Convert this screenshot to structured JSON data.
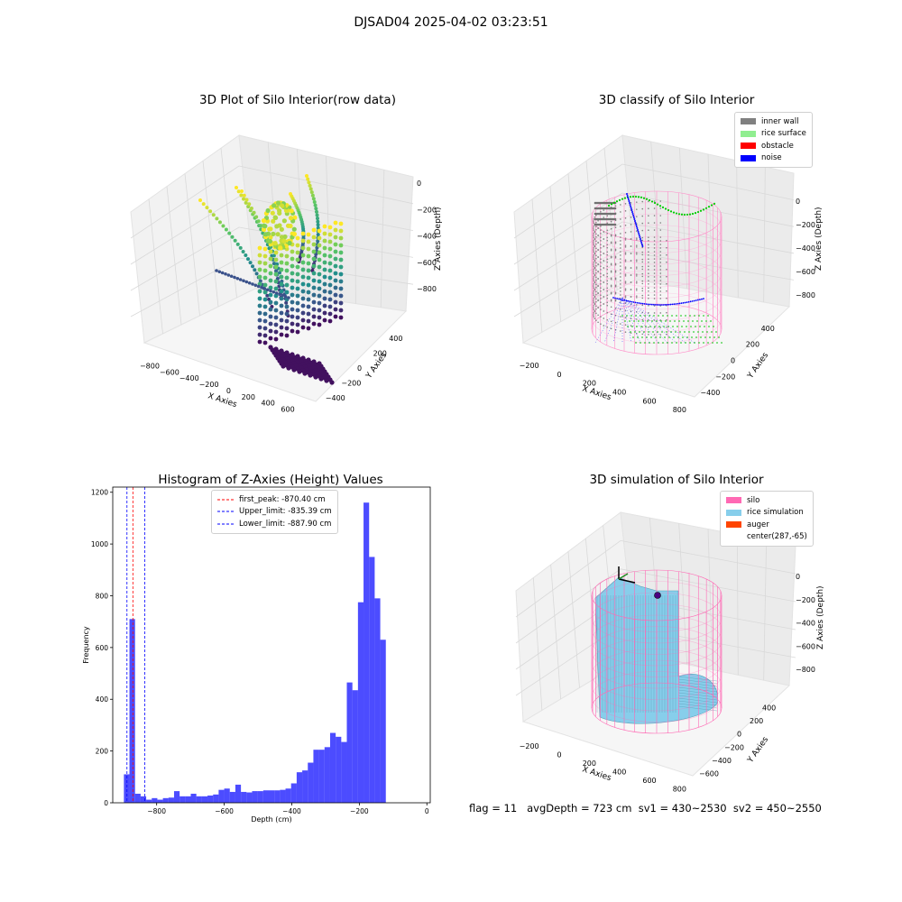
{
  "suptitle": "DJSAD04 2025-04-02 03:23:51",
  "panels": {
    "raw": {
      "title": "3D Plot of Silo Interior(row data)",
      "xlabel": "X Axies",
      "ylabel": "Y Axies",
      "zlabel": "Z Axies (Depth)",
      "xticks": [
        "−800",
        "−600",
        "−400",
        "−200",
        "0",
        "200",
        "400",
        "600"
      ],
      "yticks": [
        "−400",
        "−200",
        "0",
        "200",
        "400"
      ],
      "zticks": [
        "0",
        "−200",
        "−400",
        "−600",
        "−800"
      ]
    },
    "classify": {
      "title": "3D classify of Silo Interior",
      "xlabel": "X Axies",
      "ylabel": "Y Axies",
      "zlabel": "Z Axies (Depth)",
      "xticks": [
        "−200",
        "0",
        "200",
        "400",
        "600",
        "800"
      ],
      "yticks": [
        "−400",
        "−200",
        "0",
        "200",
        "400"
      ],
      "zticks": [
        "0",
        "−200",
        "−400",
        "−600",
        "−800"
      ],
      "legend": [
        {
          "label": "inner wall",
          "color": "#808080"
        },
        {
          "label": "rice surface",
          "color": "#90ee90"
        },
        {
          "label": "obstacle",
          "color": "#ff0000"
        },
        {
          "label": "noise",
          "color": "#0000ff"
        }
      ]
    },
    "simulation": {
      "title": "3D simulation of Silo Interior",
      "xlabel": "X Axies",
      "ylabel": "Y Axies",
      "zlabel": "Z Axies (Depth)",
      "xticks": [
        "−200",
        "0",
        "200",
        "400",
        "600",
        "800"
      ],
      "yticks": [
        "−600",
        "−400",
        "−200",
        "0",
        "200",
        "400"
      ],
      "zticks": [
        "0",
        "−200",
        "−400",
        "−600",
        "−800"
      ],
      "legend": [
        {
          "label": "silo",
          "color": "#ff69b4"
        },
        {
          "label": "rice simulation",
          "color": "#87ceeb"
        },
        {
          "label": "auger",
          "color": "#ff4500"
        },
        {
          "label": "center(287,-65)",
          "color": ""
        }
      ]
    }
  },
  "footer": "flag = 11   avgDepth = 723 cm  sv1 = 430~2530  sv2 = 450~2550",
  "chart_data": {
    "type": "bar",
    "title": "Histogram of Z-Axies (Height) Values",
    "xlabel": "Depth (cm)",
    "ylabel": "Frequency",
    "xlim": [
      -930,
      10
    ],
    "ylim": [
      0,
      1220
    ],
    "xticks": [
      -800,
      -600,
      -400,
      -200,
      0
    ],
    "yticks": [
      0,
      200,
      400,
      600,
      800,
      1000,
      1200
    ],
    "bar_color": "#0000ff",
    "bin_edges_start": -897,
    "bin_width": 16.5,
    "values": [
      110,
      710,
      35,
      25,
      12,
      18,
      12,
      18,
      20,
      45,
      25,
      25,
      35,
      25,
      25,
      28,
      32,
      50,
      55,
      42,
      70,
      42,
      40,
      45,
      45,
      48,
      48,
      48,
      50,
      55,
      75,
      118,
      125,
      155,
      205,
      205,
      215,
      270,
      255,
      235,
      465,
      435,
      775,
      1160,
      950,
      790,
      630
    ],
    "vlines": [
      {
        "label": "first_peak: -870.40 cm",
        "x": -870.4,
        "color": "#ff0000"
      },
      {
        "label": "Upper_limit: -835.39 cm",
        "x": -835.39,
        "color": "#0000ff"
      },
      {
        "label": "Lower_limit: -887.90 cm",
        "x": -887.9,
        "color": "#0000ff"
      }
    ],
    "legend_position": "top-center"
  }
}
